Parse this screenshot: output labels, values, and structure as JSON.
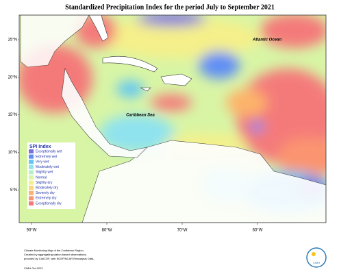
{
  "title": "Standardized Precipitation Index for the period July to September 2021",
  "map": {
    "lat_labels": [
      "25°N",
      "20°N",
      "15°N",
      "10°N",
      "5°N"
    ],
    "lon_labels": [
      "90°W",
      "80°W",
      "70°W",
      "60°W"
    ],
    "annotations": [
      "Atlantic Ocean",
      "Caribbean Sea"
    ]
  },
  "legend": {
    "title": "SPI Index",
    "items": [
      {
        "name": "Exceptionally wet",
        "color": "#7a6fe0"
      },
      {
        "name": "Extremely wet",
        "color": "#5f8ef5"
      },
      {
        "name": "Very wet",
        "color": "#5ec6f5"
      },
      {
        "name": "Moderately wet",
        "color": "#8fe3ee"
      },
      {
        "name": "Slightly wet",
        "color": "#b5f0c8"
      },
      {
        "name": "Normal",
        "color": "#d8f5a5"
      },
      {
        "name": "Slightly dry",
        "color": "#f5f08a"
      },
      {
        "name": "Moderately dry",
        "color": "#fcd77a"
      },
      {
        "name": "Severely dry",
        "color": "#fdb36b"
      },
      {
        "name": "Extremely dry",
        "color": "#fb9470"
      },
      {
        "name": "Exceptionally dry",
        "color": "#f47a7a"
      }
    ]
  },
  "footer": [
    "Climate Monitoring Map of the Caribbean Region.",
    "Created by aggregating station based observations,",
    "provided by CariCOF, with NCEP/NCAR Reanalysis Data.",
    "CIMH Oct-2021"
  ],
  "logo": "CIMH"
}
